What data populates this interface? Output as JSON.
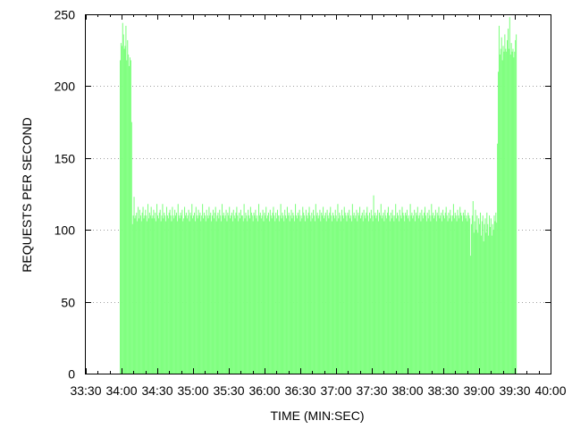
{
  "chart_data": {
    "type": "bar",
    "title": "",
    "xlabel": "TIME (MIN:SEC)",
    "ylabel": "REQUESTS PER SECOND",
    "ylim": [
      0,
      250
    ],
    "yticks": [
      0,
      50,
      100,
      150,
      200,
      250
    ],
    "xlim_seconds": [
      2010,
      2400
    ],
    "xticks": [
      {
        "t": 2010,
        "label": "33:30"
      },
      {
        "t": 2040,
        "label": "34:00"
      },
      {
        "t": 2070,
        "label": "34:30"
      },
      {
        "t": 2100,
        "label": "35:00"
      },
      {
        "t": 2130,
        "label": "35:30"
      },
      {
        "t": 2160,
        "label": "36:00"
      },
      {
        "t": 2190,
        "label": "36:30"
      },
      {
        "t": 2220,
        "label": "37:00"
      },
      {
        "t": 2250,
        "label": "37:30"
      },
      {
        "t": 2280,
        "label": "38:00"
      },
      {
        "t": 2310,
        "label": "38:30"
      },
      {
        "t": 2340,
        "label": "39:00"
      },
      {
        "t": 2370,
        "label": "39:30"
      },
      {
        "t": 2400,
        "label": "40:00"
      }
    ],
    "grid": true,
    "bar_color": "#80ff80",
    "series": [
      {
        "x_seconds_start": 2038.5,
        "x_seconds_end": 2371.5,
        "values": [
          218,
          230,
          228,
          244,
          236,
          226,
          228,
          242,
          218,
          232,
          222,
          214,
          220,
          218,
          175,
          104,
          110,
          123,
          108,
          110,
          112,
          106,
          116,
          108,
          114,
          110,
          106,
          112,
          116,
          108,
          110,
          114,
          110,
          106,
          118,
          108,
          112,
          110,
          116,
          108,
          110,
          114,
          108,
          112,
          106,
          118,
          110,
          108,
          112,
          114,
          106,
          110,
          118,
          108,
          112,
          110,
          106,
          116,
          110,
          108,
          112,
          114,
          110,
          106,
          116,
          110,
          108,
          114,
          110,
          112,
          106,
          118,
          110,
          108,
          112,
          110,
          114,
          106,
          108,
          116,
          110,
          112,
          108,
          110,
          114,
          106,
          112,
          110,
          118,
          108,
          110,
          112,
          106,
          116,
          110,
          108,
          114,
          110,
          112,
          106,
          110,
          118,
          108,
          112,
          110,
          106,
          114,
          110,
          108,
          116,
          110,
          112,
          106,
          110,
          114,
          108,
          112,
          116,
          106,
          110,
          112,
          108,
          114,
          110,
          106,
          118,
          110,
          112,
          108,
          110,
          114,
          106,
          112,
          110,
          116,
          108,
          110,
          112,
          106,
          114,
          110,
          108,
          112,
          116,
          110,
          106,
          112,
          108,
          114,
          110,
          110,
          106,
          118,
          108,
          112,
          110,
          106,
          114,
          110,
          108,
          116,
          112,
          110,
          106,
          112,
          110,
          114,
          108,
          110,
          106,
          118,
          110,
          112,
          108,
          110,
          114,
          106,
          112,
          110,
          116,
          108,
          110,
          112,
          106,
          114,
          110,
          108,
          112,
          116,
          110,
          106,
          112,
          108,
          114,
          110,
          106,
          110,
          118,
          108,
          112,
          110,
          106,
          114,
          110,
          108,
          116,
          110,
          112,
          106,
          110,
          114,
          108,
          112,
          110,
          106,
          118,
          110,
          108,
          112,
          110,
          114,
          106,
          110,
          108,
          116,
          112,
          110,
          106,
          114,
          110,
          108,
          112,
          116,
          110,
          106,
          112,
          108,
          114,
          110,
          106,
          118,
          110,
          112,
          108,
          110,
          114,
          106,
          112,
          110,
          116,
          108,
          110,
          112,
          106,
          114,
          110,
          108,
          112,
          116,
          110,
          106,
          112,
          110,
          108,
          114,
          110,
          106,
          118,
          108,
          112,
          110,
          106,
          114,
          110,
          108,
          116,
          112,
          110,
          106,
          112,
          110,
          114,
          108,
          110,
          106,
          118,
          110,
          112,
          108,
          110,
          114,
          106,
          112,
          110,
          116,
          108,
          110,
          112,
          106,
          114,
          110,
          108,
          112,
          116,
          110,
          106,
          112,
          108,
          114,
          110,
          106,
          124,
          110,
          112,
          108,
          110,
          114,
          106,
          112,
          110,
          118,
          108,
          110,
          112,
          106,
          114,
          110,
          108,
          112,
          116,
          110,
          106,
          112,
          108,
          114,
          110,
          106,
          110,
          118,
          108,
          112,
          110,
          106,
          114,
          110,
          108,
          116,
          112,
          110,
          106,
          112,
          110,
          114,
          108,
          110,
          106,
          118,
          110,
          112,
          108,
          110,
          114,
          106,
          112,
          110,
          116,
          108,
          110,
          112,
          106,
          114,
          110,
          108,
          112,
          116,
          110,
          106,
          112,
          108,
          114,
          110,
          106,
          118,
          110,
          112,
          108,
          110,
          114,
          106,
          112,
          110,
          116,
          108,
          110,
          112,
          106,
          114,
          110,
          108,
          112,
          116,
          110,
          106,
          112,
          108,
          114,
          110,
          106,
          110,
          118,
          108,
          112,
          110,
          106,
          114,
          110,
          108,
          116,
          112,
          110,
          106,
          112,
          110,
          114,
          108,
          110,
          106,
          112,
          110,
          108,
          82,
          104,
          110,
          120,
          98,
          106,
          114,
          100,
          110,
          98,
          108,
          104,
          112,
          96,
          106,
          110,
          92,
          104,
          108,
          98,
          112,
          104,
          96,
          110,
          102,
          108,
          96,
          104,
          100,
          110,
          106,
          112,
          105,
          160,
          210,
          242,
          222,
          226,
          234,
          218,
          228,
          224,
          236,
          226,
          224,
          232,
          240,
          226,
          248,
          222,
          230,
          224,
          226,
          220,
          224,
          232,
          236
        ]
      }
    ]
  }
}
